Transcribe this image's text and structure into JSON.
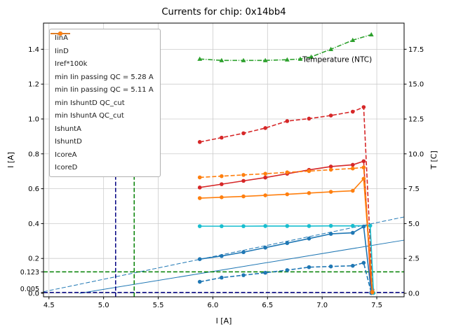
{
  "chart_data": {
    "type": "line",
    "title": "Currents for chip: 0x14bb4",
    "xlabel": "I [A]",
    "ylabel": "I [A]",
    "y2label": "T [C]",
    "xlim": [
      4.45,
      7.75
    ],
    "ylim": [
      -0.02,
      1.55
    ],
    "y2lim": [
      -0.25,
      19.375
    ],
    "x_ticks": [
      4.5,
      5.0,
      5.5,
      6.0,
      6.5,
      7.0,
      7.5
    ],
    "y_ticks": [
      0.0,
      0.2,
      0.4,
      0.6,
      0.8,
      1.0,
      1.2,
      1.4
    ],
    "y_extra_ticks": [
      0.123,
      0.005
    ],
    "y2_ticks": [
      0.0,
      2.5,
      5.0,
      7.5,
      10.0,
      12.5,
      15.0,
      17.5
    ],
    "grid": true,
    "grid_color": "#cccccc",
    "legend_position": "upper-left",
    "annotation": {
      "text": "Temperature (NTC)",
      "x": 6.82,
      "y_right": 16.6
    },
    "series": [
      {
        "name": "IinA",
        "color": "#d62728",
        "dash": "solid",
        "marker": "circle",
        "axis": "left",
        "x": [
          5.88,
          6.08,
          6.28,
          6.48,
          6.68,
          6.88,
          7.08,
          7.28,
          7.38,
          7.45
        ],
        "y": [
          0.607,
          0.626,
          0.645,
          0.664,
          0.686,
          0.708,
          0.727,
          0.737,
          0.758,
          0.005
        ]
      },
      {
        "name": "IinD",
        "color": "#d62728",
        "dash": "dashed",
        "marker": "circle",
        "axis": "left",
        "x": [
          5.88,
          6.08,
          6.28,
          6.48,
          6.68,
          6.88,
          7.08,
          7.28,
          7.38,
          7.46
        ],
        "y": [
          0.868,
          0.893,
          0.918,
          0.948,
          0.988,
          1.002,
          1.02,
          1.042,
          1.068,
          0.02
        ]
      },
      {
        "name": "Iref*100k",
        "color": "#17becf",
        "dash": "solid",
        "marker": "circle",
        "axis": "left",
        "x": [
          5.88,
          6.08,
          6.28,
          6.48,
          6.68,
          6.88,
          7.08,
          7.28,
          7.44,
          7.47
        ],
        "y": [
          0.385,
          0.385,
          0.385,
          0.386,
          0.386,
          0.386,
          0.387,
          0.387,
          0.388,
          0.002
        ]
      },
      {
        "name": "IshuntA",
        "color": "#1f77b4",
        "dash": "solid",
        "marker": "circle",
        "axis": "left",
        "x": [
          5.88,
          6.08,
          6.28,
          6.48,
          6.68,
          6.88,
          7.08,
          7.28,
          7.38,
          7.45
        ],
        "y": [
          0.196,
          0.214,
          0.236,
          0.262,
          0.288,
          0.314,
          0.341,
          0.347,
          0.383,
          0.002
        ]
      },
      {
        "name": "IshuntD",
        "color": "#1f77b4",
        "dash": "dashed",
        "marker": "circle",
        "axis": "left",
        "x": [
          5.88,
          6.08,
          6.28,
          6.48,
          6.68,
          6.88,
          7.08,
          7.28,
          7.38,
          7.45
        ],
        "y": [
          0.066,
          0.09,
          0.104,
          0.118,
          0.133,
          0.15,
          0.154,
          0.158,
          0.175,
          0.002
        ]
      },
      {
        "name": "IcoreA",
        "color": "#ff7f0e",
        "dash": "solid",
        "marker": "circle",
        "axis": "left",
        "x": [
          5.88,
          6.08,
          6.28,
          6.48,
          6.68,
          6.88,
          7.08,
          7.28,
          7.38,
          7.46
        ],
        "y": [
          0.546,
          0.551,
          0.556,
          0.562,
          0.568,
          0.575,
          0.582,
          0.588,
          0.657,
          0.005
        ]
      },
      {
        "name": "IcoreD",
        "color": "#ff7f0e",
        "dash": "dashed",
        "marker": "circle",
        "axis": "left",
        "x": [
          5.88,
          6.08,
          6.28,
          6.48,
          6.68,
          6.88,
          7.08,
          7.28,
          7.38,
          7.46
        ],
        "y": [
          0.665,
          0.672,
          0.679,
          0.686,
          0.694,
          0.701,
          0.709,
          0.716,
          0.722,
          0.008
        ]
      },
      {
        "name": "Temperature (NTC)",
        "color": "#2ca02c",
        "dash": "dashdot",
        "marker": "triangle",
        "axis": "right",
        "x": [
          5.88,
          6.08,
          6.28,
          6.48,
          6.68,
          6.8,
          6.9,
          7.08,
          7.28,
          7.45
        ],
        "y": [
          16.8,
          16.7,
          16.7,
          16.7,
          16.75,
          16.8,
          16.95,
          17.5,
          18.15,
          18.55
        ]
      }
    ],
    "fit_lines": [
      {
        "name": "IshuntA-fit",
        "color": "#1f77b4",
        "dash": "dashed",
        "x": [
          4.45,
          7.75
        ],
        "y": [
          0.009,
          0.438
        ]
      },
      {
        "name": "IshuntD-fit",
        "color": "#1f77b4",
        "dash": "solid",
        "x": [
          4.78,
          7.75
        ],
        "y": [
          0.0,
          0.305
        ]
      }
    ],
    "hlines": [
      {
        "label": "min IshuntD QC_cut",
        "y": 0.123,
        "color": "#008000",
        "dash": "dashed"
      },
      {
        "label": "min IshuntA QC_cut",
        "y": 0.005,
        "color": "#000080",
        "dash": "dashed"
      }
    ],
    "vlines": [
      {
        "label": "min Iin passing QC = 5.28 A",
        "x": 5.28,
        "ymax": 0.79,
        "color": "#008000",
        "dash": "dashed"
      },
      {
        "label": "min Iin passing QC = 5.11 A",
        "x": 5.11,
        "ymax": 0.79,
        "color": "#000080",
        "dash": "dashed"
      }
    ],
    "legend_entries": [
      {
        "label": "IinA",
        "color": "#d62728",
        "dash": "solid",
        "marker": true
      },
      {
        "label": "IinD",
        "color": "#d62728",
        "dash": "dashed",
        "marker": true
      },
      {
        "label": "Iref*100k",
        "color": "#17becf",
        "dash": "solid",
        "marker": true
      },
      {
        "label": "min Iin passing QC = 5.28 A",
        "color": "#008000",
        "dash": "dashed",
        "marker": false
      },
      {
        "label": "min Iin passing QC = 5.11 A",
        "color": "#000080",
        "dash": "dashed",
        "marker": false
      },
      {
        "label": "min IshuntD QC_cut",
        "color": "#008000",
        "dash": "dashed",
        "marker": false
      },
      {
        "label": "min IshuntA QC_cut",
        "color": "#000080",
        "dash": "dashed",
        "marker": false
      },
      {
        "label": "IshuntA",
        "color": "#1f77b4",
        "dash": "solid",
        "marker": true
      },
      {
        "label": "IshuntD",
        "color": "#1f77b4",
        "dash": "dashed",
        "marker": true
      },
      {
        "label": "IcoreA",
        "color": "#ff7f0e",
        "dash": "solid",
        "marker": true
      },
      {
        "label": "IcoreD",
        "color": "#ff7f0e",
        "dash": "dashed",
        "marker": true
      }
    ]
  }
}
